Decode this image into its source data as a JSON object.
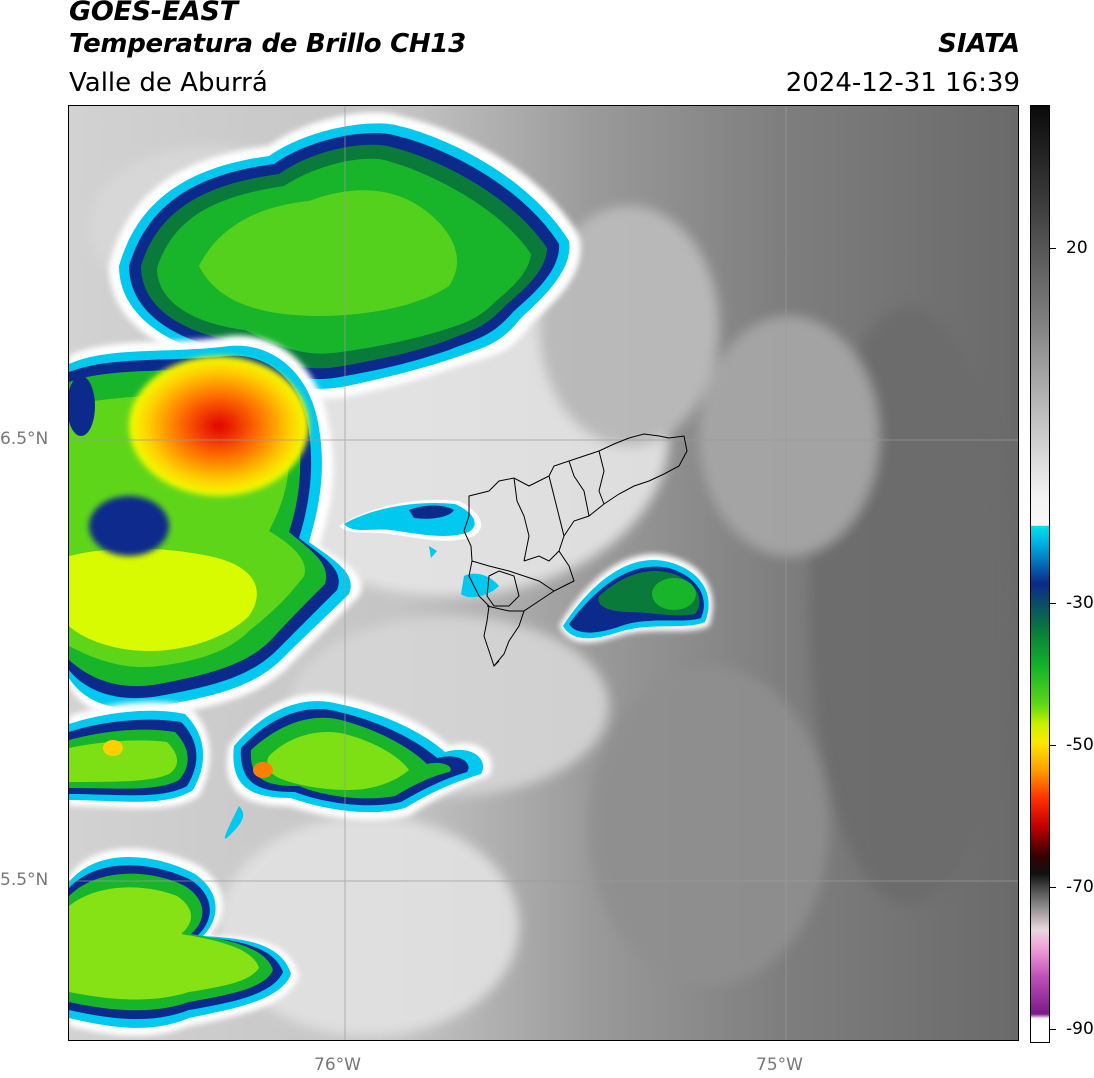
{
  "header": {
    "title": "GOES-EAST",
    "subtitle": "Temperatura de Brillo CH13",
    "region": "Valle de Aburrá",
    "organization": "SIATA",
    "datetime": "2024-12-31 16:39"
  },
  "axes": {
    "x_ticks": [
      "76°W",
      "75°W"
    ],
    "y_ticks": [
      "6.5°N",
      "5.5°N"
    ]
  },
  "colorbar": {
    "tick_labels": [
      "20",
      "-30",
      "-50",
      "-70",
      "-90"
    ],
    "range": [
      -90,
      35
    ],
    "colors": {
      "warm_dark": "#111111",
      "mid_gray": "#8a8a8a",
      "light_gray": "#f2f2f2",
      "cyan": "#00d4f0",
      "blue": "#0a2a8a",
      "green": "#16b22a",
      "yellow": "#f7f500",
      "orange": "#ff8c00",
      "red": "#e80000",
      "magenta": "#e060c8",
      "purple": "#7a1a8a"
    }
  },
  "map_features": {
    "grid_color": "#9a9a9a",
    "boundary_color": "#000000"
  }
}
